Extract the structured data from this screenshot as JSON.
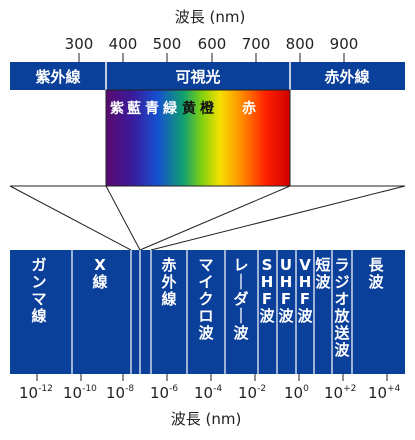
{
  "top_axis": {
    "title": "波長 (nm)",
    "ticks": [
      {
        "label": "300",
        "value": 300
      },
      {
        "label": "400",
        "value": 400
      },
      {
        "label": "500",
        "value": 500
      },
      {
        "label": "600",
        "value": 600
      },
      {
        "label": "700",
        "value": 700
      },
      {
        "label": "800",
        "value": 800
      },
      {
        "label": "900",
        "value": 900
      }
    ]
  },
  "top_bands": [
    {
      "label": "紫外線"
    },
    {
      "label": "可視光"
    },
    {
      "label": "赤外線"
    }
  ],
  "visible_colors": [
    "紫",
    "藍",
    "青",
    "緑",
    "黄",
    "橙",
    "赤"
  ],
  "bottom_bands": [
    {
      "label": "ガンマ線"
    },
    {
      "label": "X線"
    },
    {
      "label": "赤外線"
    },
    {
      "label": "マイクロ波"
    },
    {
      "label": "レーダー波"
    },
    {
      "label": "SHF波"
    },
    {
      "label": "UHF波"
    },
    {
      "label": "VHF波"
    },
    {
      "label": "短波"
    },
    {
      "label": "ラジオ放送波"
    },
    {
      "label": "長波"
    }
  ],
  "bottom_axis": {
    "title": "波長 (nm)",
    "ticks": [
      {
        "base": "10",
        "exp": "-12"
      },
      {
        "base": "10",
        "exp": "-10"
      },
      {
        "base": "10",
        "exp": "-8"
      },
      {
        "base": "10",
        "exp": "-6"
      },
      {
        "base": "10",
        "exp": "-4"
      },
      {
        "base": "10",
        "exp": "-2"
      },
      {
        "base": "10",
        "exp": "0"
      },
      {
        "base": "10",
        "exp": "+2"
      },
      {
        "base": "10",
        "exp": "+4"
      }
    ]
  },
  "colors": {
    "band_blue": "#0a3f9a",
    "divider": "#ffffff",
    "text_on_band": "#ffffff",
    "axis_text": "#222222"
  }
}
